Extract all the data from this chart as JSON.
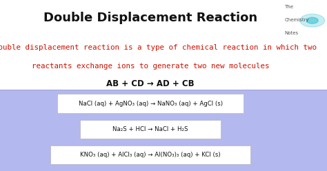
{
  "title": "Double Displacement Reaction",
  "title_fontsize": 13,
  "definition_line1": "A double displacement reaction is a type of chemical reaction in which two",
  "definition_line2": "reactants exchange ions to generate two new molecules",
  "definition_color": "#cc1100",
  "definition_fontsize": 7.8,
  "formula": "AB + CD → AD + CB",
  "formula_fontsize": 8.5,
  "bg_bottom_color": "#b3b8ee",
  "reactions": [
    "NaCl (aq) + AgNO₃ (aq) → NaNO₃ (aq) + AgCl (s)",
    "Na₂S + HCl → NaCl + H₂S",
    "KNO₃ (aq) + AlCl₃ (aq) → Al(NO₃)₃ (aq) + KCl (s)"
  ],
  "reaction_fontsize": 6.2,
  "logo_text": [
    "The",
    "Chemistry",
    "Notes"
  ],
  "logo_fontsize": 5.0,
  "fig_width": 4.74,
  "fig_height": 2.48,
  "dpi": 100
}
